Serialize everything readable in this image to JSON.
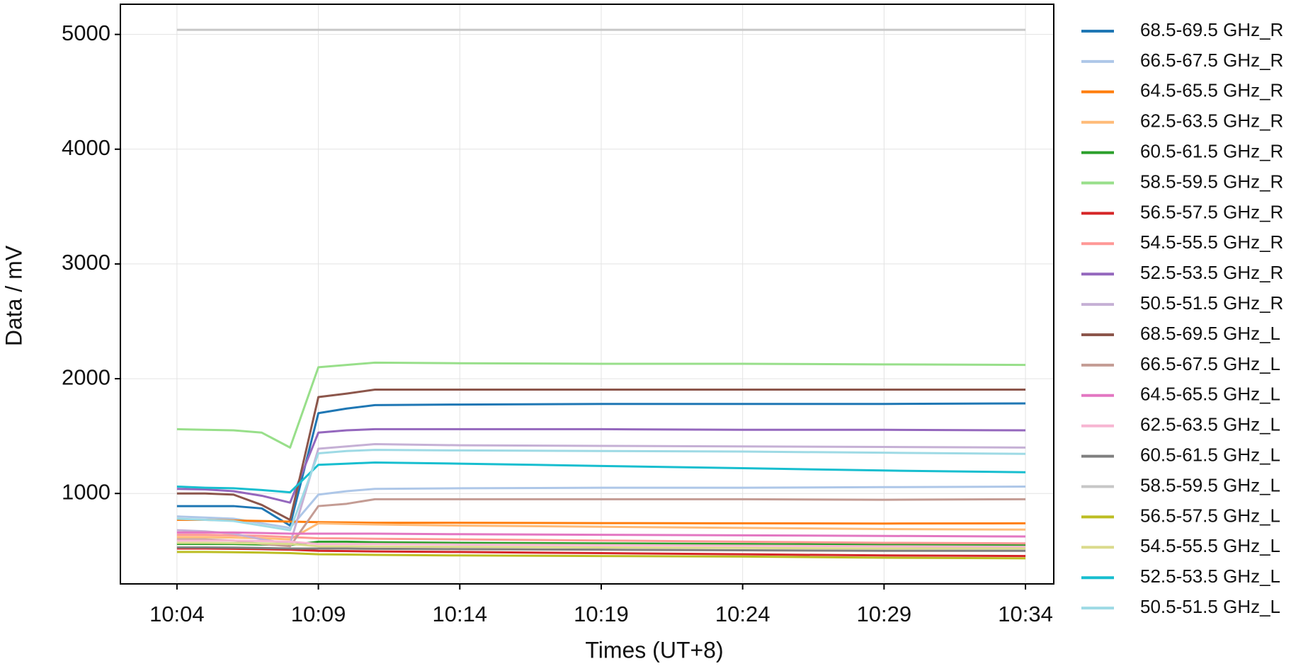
{
  "chart_data": {
    "type": "line",
    "x_label": "Times (UT+8)",
    "y_label": "Data / mV",
    "x": [
      "10:04",
      "10:05",
      "10:06",
      "10:07",
      "10:08",
      "10:09",
      "10:10",
      "10:11",
      "10:14",
      "10:19",
      "10:24",
      "10:29",
      "10:34"
    ],
    "xlim": [
      "10:02",
      "10:35"
    ],
    "xticks": [
      "10:04",
      "10:09",
      "10:14",
      "10:19",
      "10:24",
      "10:29",
      "10:34"
    ],
    "ylim": [
      212,
      5263
    ],
    "yticks": [
      1000,
      2000,
      3000,
      4000,
      5000
    ],
    "grid": true,
    "legend": "right",
    "series": [
      {
        "name": "68.5-69.5 GHz_R",
        "color": "#1f77b4",
        "values": [
          890,
          890,
          890,
          870,
          720,
          1700,
          1740,
          1770,
          1775,
          1780,
          1780,
          1780,
          1785
        ]
      },
      {
        "name": "66.5-67.5 GHz_R",
        "color": "#aec7e8",
        "values": [
          800,
          790,
          780,
          740,
          700,
          990,
          1020,
          1040,
          1045,
          1050,
          1050,
          1055,
          1060
        ]
      },
      {
        "name": "64.5-65.5 GHz_R",
        "color": "#ff7f0e",
        "values": [
          770,
          770,
          765,
          760,
          755,
          750,
          748,
          745,
          745,
          742,
          740,
          738,
          740
        ]
      },
      {
        "name": "62.5-63.5 GHz_R",
        "color": "#ffbb78",
        "values": [
          620,
          620,
          615,
          610,
          600,
          740,
          735,
          730,
          720,
          710,
          700,
          690,
          685
        ]
      },
      {
        "name": "60.5-61.5 GHz_R",
        "color": "#2ca02c",
        "values": [
          560,
          560,
          560,
          555,
          550,
          580,
          580,
          575,
          570,
          565,
          560,
          555,
          550
        ]
      },
      {
        "name": "58.5-59.5 GHz_R",
        "color": "#98df8a",
        "values": [
          1560,
          1555,
          1550,
          1530,
          1400,
          2100,
          2120,
          2140,
          2135,
          2130,
          2130,
          2125,
          2120
        ]
      },
      {
        "name": "56.5-57.5 GHz_R",
        "color": "#d62728",
        "values": [
          520,
          520,
          518,
          515,
          510,
          500,
          498,
          495,
          490,
          480,
          470,
          460,
          455
        ]
      },
      {
        "name": "54.5-55.5 GHz_R",
        "color": "#ff9896",
        "values": [
          640,
          640,
          635,
          630,
          620,
          610,
          608,
          605,
          600,
          590,
          580,
          570,
          565
        ]
      },
      {
        "name": "52.5-53.5 GHz_R",
        "color": "#9467bd",
        "values": [
          1040,
          1035,
          1020,
          980,
          920,
          1530,
          1550,
          1560,
          1560,
          1560,
          1555,
          1555,
          1550
        ]
      },
      {
        "name": "50.5-51.5 GHz_R",
        "color": "#c5b0d5",
        "values": [
          680,
          670,
          650,
          600,
          560,
          1390,
          1410,
          1430,
          1420,
          1415,
          1410,
          1405,
          1400
        ]
      },
      {
        "name": "68.5-69.5 GHz_L",
        "color": "#8c564b",
        "values": [
          1000,
          1000,
          990,
          900,
          770,
          1840,
          1870,
          1905,
          1905,
          1905,
          1905,
          1905,
          1905
        ]
      },
      {
        "name": "66.5-67.5 GHz_L",
        "color": "#c49c94",
        "values": [
          600,
          600,
          590,
          560,
          540,
          890,
          910,
          950,
          950,
          950,
          950,
          945,
          950
        ]
      },
      {
        "name": "64.5-65.5 GHz_L",
        "color": "#e377c2",
        "values": [
          660,
          660,
          660,
          655,
          650,
          650,
          650,
          650,
          645,
          640,
          635,
          630,
          625
        ]
      },
      {
        "name": "62.5-63.5 GHz_L",
        "color": "#f7b6d2",
        "values": [
          590,
          590,
          590,
          585,
          580,
          560,
          560,
          560,
          555,
          550,
          545,
          540,
          535
        ]
      },
      {
        "name": "60.5-61.5 GHz_L",
        "color": "#7f7f7f",
        "values": [
          530,
          530,
          528,
          525,
          520,
          520,
          520,
          518,
          515,
          510,
          505,
          500,
          500
        ]
      },
      {
        "name": "58.5-59.5 GHz_L",
        "color": "#c7c7c7",
        "values": [
          5040,
          5040,
          5040,
          5040,
          5040,
          5040,
          5040,
          5040,
          5040,
          5040,
          5040,
          5040,
          5040
        ]
      },
      {
        "name": "56.5-57.5 GHz_L",
        "color": "#bcbd22",
        "values": [
          490,
          490,
          488,
          485,
          480,
          470,
          468,
          465,
          460,
          455,
          450,
          440,
          435
        ]
      },
      {
        "name": "54.5-55.5 GHz_L",
        "color": "#dbdb8d",
        "values": [
          570,
          570,
          568,
          565,
          560,
          540,
          540,
          538,
          535,
          530,
          525,
          520,
          520
        ]
      },
      {
        "name": "52.5-53.5 GHz_L",
        "color": "#17becf",
        "values": [
          1060,
          1050,
          1045,
          1030,
          1010,
          1250,
          1260,
          1270,
          1260,
          1240,
          1220,
          1200,
          1185
        ]
      },
      {
        "name": "50.5-51.5 GHz_L",
        "color": "#9edae5",
        "values": [
          780,
          770,
          760,
          720,
          680,
          1350,
          1370,
          1380,
          1375,
          1370,
          1365,
          1355,
          1345
        ]
      }
    ]
  }
}
